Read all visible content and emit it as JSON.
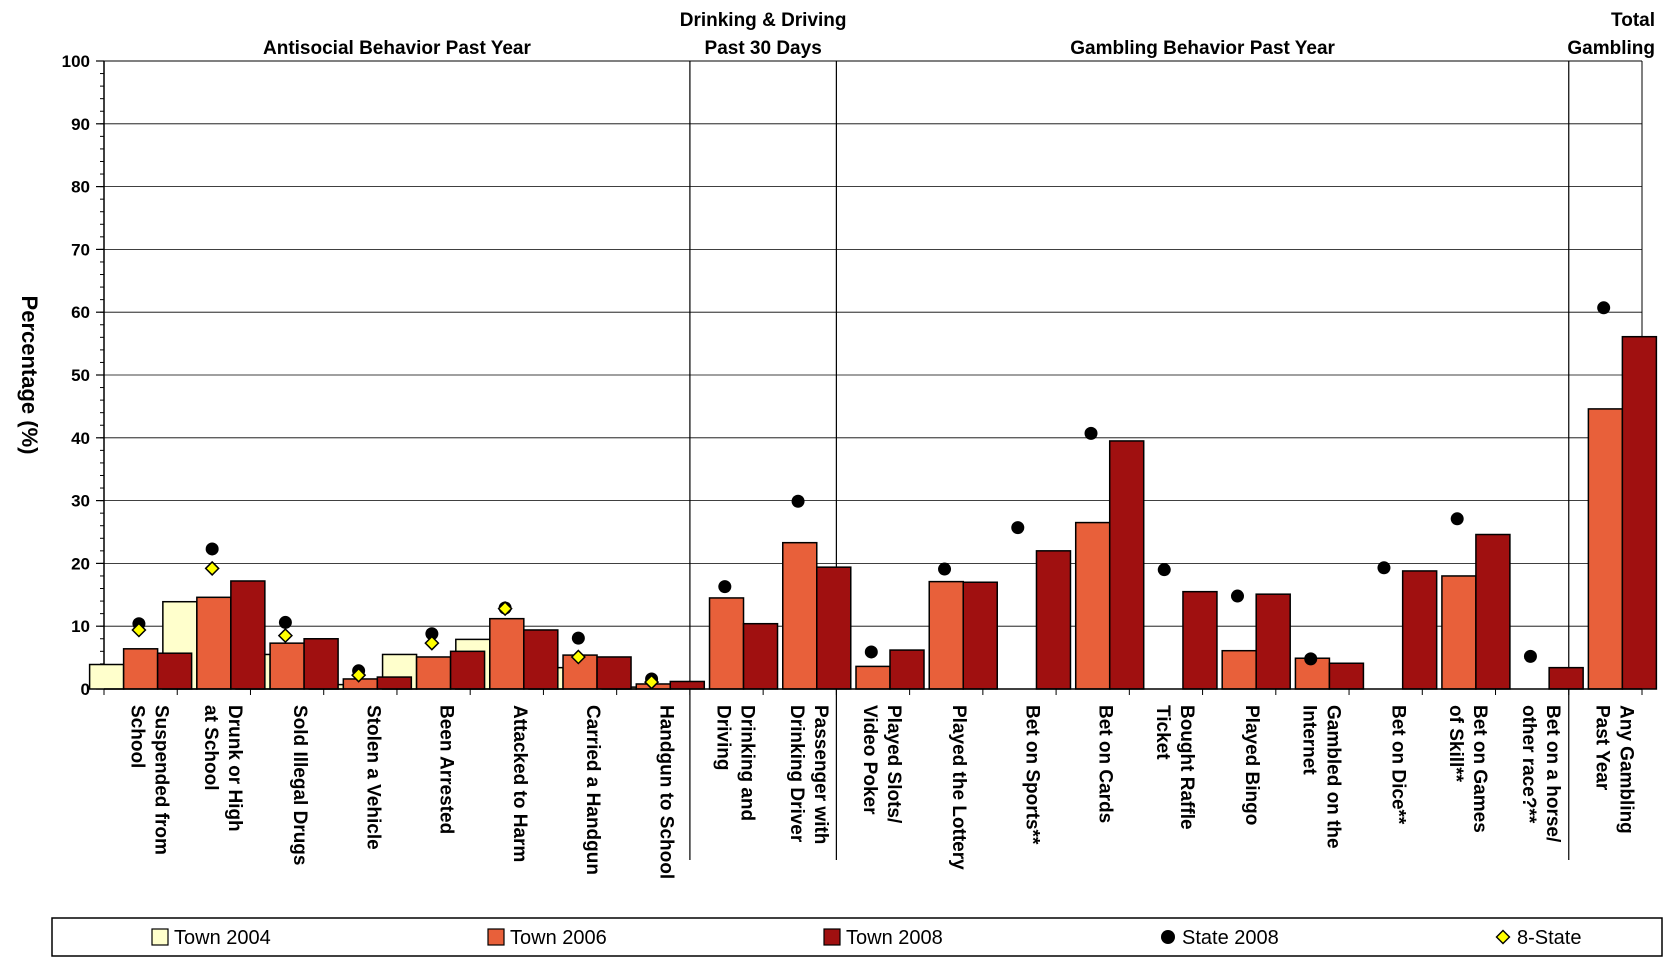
{
  "chart_data": {
    "type": "bar",
    "ylabel": "Percentage (%)",
    "ylim": [
      0,
      100
    ],
    "yticks": [
      0,
      10,
      20,
      30,
      40,
      50,
      60,
      70,
      80,
      90,
      100
    ],
    "grid": true,
    "legend_position": "bottom",
    "sections": [
      {
        "title_lines": [
          "Antisocial Behavior Past Year"
        ],
        "start": 0,
        "end": 8
      },
      {
        "title_lines": [
          "Drinking & Driving",
          "Past 30 Days"
        ],
        "start": 8,
        "end": 10
      },
      {
        "title_lines": [
          "Gambling Behavior Past Year"
        ],
        "start": 10,
        "end": 20
      },
      {
        "title_lines": [
          "Total",
          "Gambling"
        ],
        "start": 20,
        "end": 21
      }
    ],
    "categories": [
      [
        "Suspended from",
        "School"
      ],
      [
        "Drunk or High",
        "at School"
      ],
      [
        "Sold Illegal Drugs"
      ],
      [
        "Stolen a Vehicle"
      ],
      [
        "Been Arrested"
      ],
      [
        "Attacked to Harm"
      ],
      [
        "Carried a Handgun"
      ],
      [
        "Handgun to School"
      ],
      [
        "Drinking and",
        "Driving"
      ],
      [
        "Passenger with",
        "Drinking Driver"
      ],
      [
        "Played Slots/",
        "Video Poker"
      ],
      [
        "Played the Lottery"
      ],
      [
        "Bet on Sports**"
      ],
      [
        "Bet on Cards"
      ],
      [
        "Bought Raffle",
        "Ticket"
      ],
      [
        "Played Bingo"
      ],
      [
        "Gambled on the",
        "Internet"
      ],
      [
        "Bet on Dice**"
      ],
      [
        "Bet on Games",
        "of Skill**"
      ],
      [
        "Bet on a horse/",
        "other race?**"
      ],
      [
        "Any Gambling",
        "Past Year"
      ]
    ],
    "series": [
      {
        "name": "Town 2004",
        "kind": "bar",
        "color": "#FFFFCC",
        "values": [
          3.9,
          13.9,
          5.5,
          0.7,
          5.5,
          7.9,
          3.4,
          0.3,
          null,
          null,
          null,
          null,
          null,
          null,
          null,
          null,
          null,
          null,
          null,
          null,
          null
        ]
      },
      {
        "name": "Town 2006",
        "kind": "bar",
        "color": "#E8603A",
        "values": [
          6.4,
          14.6,
          7.3,
          1.6,
          5.1,
          11.2,
          5.4,
          0.8,
          14.5,
          23.3,
          3.6,
          17.1,
          null,
          26.5,
          null,
          6.1,
          4.9,
          null,
          18.0,
          null,
          44.6
        ]
      },
      {
        "name": "Town 2008",
        "kind": "bar",
        "color": "#A01010",
        "values": [
          5.7,
          17.2,
          8.0,
          1.9,
          6.0,
          9.4,
          5.1,
          1.2,
          10.4,
          19.4,
          6.2,
          17.0,
          22.0,
          39.5,
          15.5,
          15.1,
          4.1,
          18.8,
          24.6,
          3.4,
          56.1
        ]
      },
      {
        "name": "State 2008",
        "kind": "circle",
        "color": "#000000",
        "values": [
          10.4,
          22.3,
          10.6,
          2.9,
          8.8,
          12.9,
          8.1,
          1.6,
          16.3,
          29.9,
          5.9,
          19.1,
          25.7,
          40.7,
          19.0,
          14.8,
          4.8,
          19.3,
          27.1,
          5.2,
          60.7
        ]
      },
      {
        "name": "8-State",
        "kind": "diamond",
        "color": "#FFFF00",
        "values": [
          9.4,
          19.2,
          8.5,
          2.2,
          7.3,
          12.8,
          5.1,
          1.1,
          null,
          null,
          null,
          null,
          null,
          null,
          null,
          null,
          null,
          null,
          null,
          null,
          null
        ]
      }
    ]
  }
}
